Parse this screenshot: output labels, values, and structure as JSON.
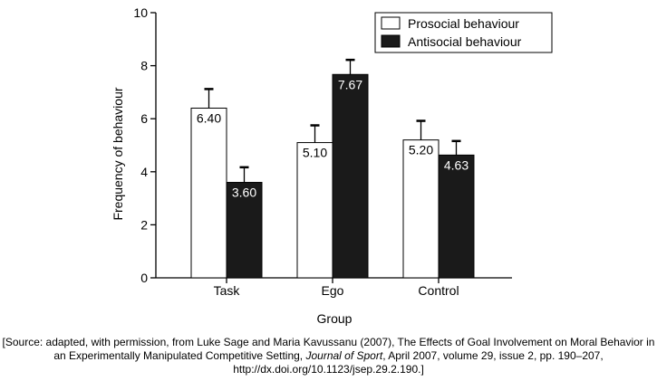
{
  "chart_data": {
    "type": "bar",
    "categories": [
      "Task",
      "Ego",
      "Control"
    ],
    "series": [
      {
        "name": "Prosocial behaviour",
        "values": [
          6.4,
          5.1,
          5.2
        ],
        "errors": [
          0.72,
          0.65,
          0.72
        ],
        "fill": "#ffffff",
        "label_color": "#000000"
      },
      {
        "name": "Antisocial behaviour",
        "values": [
          3.6,
          7.67,
          4.63
        ],
        "errors": [
          0.57,
          0.55,
          0.53
        ],
        "fill": "#1a1a1a",
        "label_color": "#ffffff"
      }
    ],
    "value_labels": [
      [
        "6.40",
        "5.10",
        "5.20"
      ],
      [
        "3.60",
        "7.67",
        "4.63"
      ]
    ],
    "xlabel": "Group",
    "ylabel": "Frequency of behaviour",
    "ylim": [
      0,
      10
    ],
    "yticks": [
      "0",
      "2",
      "4",
      "6",
      "8",
      "10"
    ],
    "ytick_values": [
      0,
      2,
      4,
      6,
      8,
      10
    ],
    "legend_position": "top-right",
    "grid": false
  },
  "source": {
    "prefix": "[Source: adapted, with permission, from Luke Sage and Maria Kavussanu (2007), The Effects of Goal Involvement on Moral Behavior in an Experimentally Manipulated Competitive Setting, ",
    "journal": "Journal of Sport",
    "suffix": ", April 2007, volume 29, issue 2, pp. 190–207,",
    "doi": "http://dx.doi.org/10.1123/jsep.29.2.190.]"
  }
}
